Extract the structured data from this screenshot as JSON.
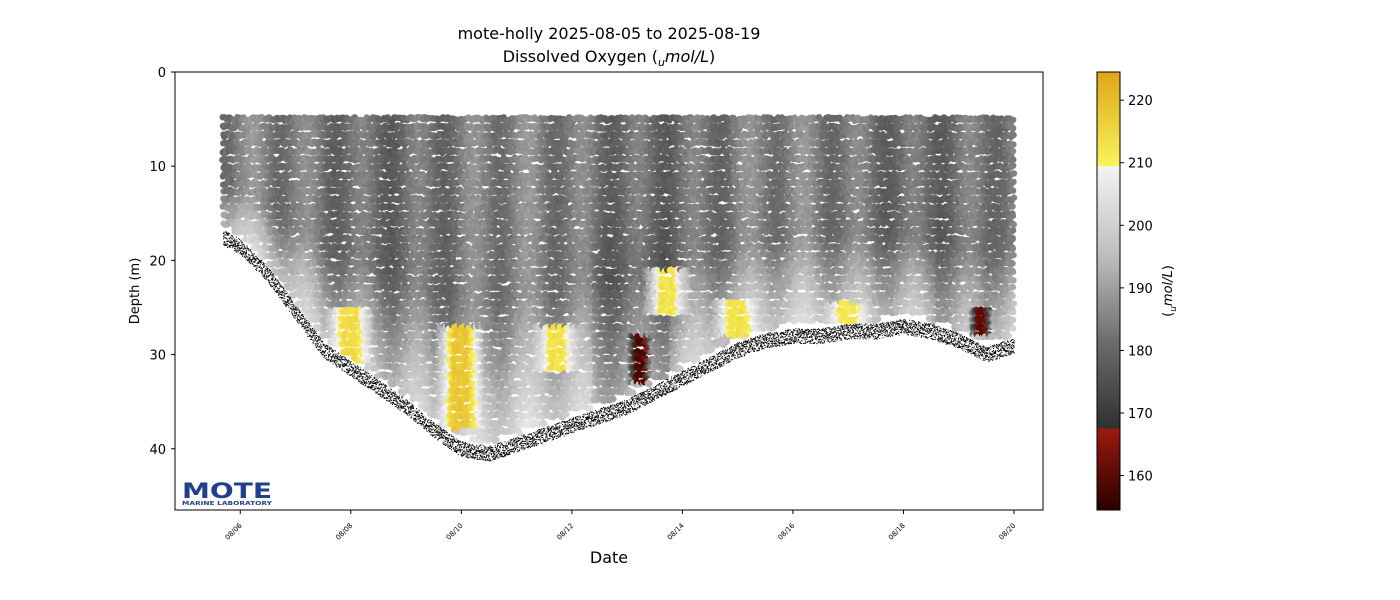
{
  "title_line1": "mote-holly 2025-08-05 to 2025-08-19",
  "title_line2_prefix": "Dissolved Oxygen (",
  "title_line2_sub": "u",
  "title_line2_unit": "mol/L",
  "title_line2_suffix": ")",
  "logo": {
    "main": "MOTE",
    "sub": "MARINE LABORATORY",
    "color": "#1f3f8f"
  },
  "chart_data": {
    "type": "scatter",
    "xlabel": "Date",
    "ylabel": "Depth (m)",
    "x_ticks": [
      "08/06",
      "08/08",
      "08/10",
      "08/12",
      "08/14",
      "08/16",
      "08/18",
      "08/20"
    ],
    "y_ticks": [
      0,
      10,
      20,
      30,
      40
    ],
    "ylim": [
      46.5,
      0
    ],
    "xlim": [
      "2025-08-05",
      "2025-08-20"
    ],
    "y_inverted": true,
    "colorbar": {
      "label_sub": "u",
      "label_unit": "mol/L",
      "ticks": [
        160,
        170,
        180,
        190,
        200,
        210,
        220
      ],
      "range": [
        154.5,
        224.5
      ],
      "colormap": [
        {
          "v": 154.5,
          "color": "#2a0000"
        },
        {
          "v": 167.5,
          "color": "#9a1a10"
        },
        {
          "v": 167.5,
          "color": "#303030"
        },
        {
          "v": 181.0,
          "color": "#6a6a6a"
        },
        {
          "v": 195.0,
          "color": "#bdbdbd"
        },
        {
          "v": 209.5,
          "color": "#f4f4f4"
        },
        {
          "v": 209.5,
          "color": "#f8f45a"
        },
        {
          "v": 224.5,
          "color": "#dfa61a"
        }
      ]
    },
    "surface_depth_m": 5,
    "bottom_profile": {
      "dates": [
        "2025-08-05 16:00",
        "2025-08-06 00:00",
        "2025-08-06 12:00",
        "2025-08-07 00:00",
        "2025-08-07 12:00",
        "2025-08-08 00:00",
        "2025-08-08 12:00",
        "2025-08-09 00:00",
        "2025-08-09 12:00",
        "2025-08-10 00:00",
        "2025-08-10 12:00",
        "2025-08-11 00:00",
        "2025-08-11 12:00",
        "2025-08-12 00:00",
        "2025-08-12 12:00",
        "2025-08-13 00:00",
        "2025-08-13 12:00",
        "2025-08-14 00:00",
        "2025-08-14 12:00",
        "2025-08-15 00:00",
        "2025-08-15 12:00",
        "2025-08-16 00:00",
        "2025-08-16 12:00",
        "2025-08-17 00:00",
        "2025-08-17 12:00",
        "2025-08-18 00:00",
        "2025-08-18 12:00",
        "2025-08-19 00:00",
        "2025-08-19 12:00",
        "2025-08-20 00:00"
      ],
      "depths": [
        17.5,
        18.5,
        21.5,
        25.5,
        29.5,
        31.5,
        33.5,
        35.5,
        38.0,
        40.0,
        40.5,
        39.5,
        38.5,
        37.5,
        36.5,
        35.5,
        34.0,
        32.5,
        31.0,
        29.5,
        28.5,
        28.0,
        28.0,
        27.5,
        27.5,
        27.0,
        27.5,
        28.5,
        30.0,
        29.0
      ]
    },
    "oxygen_features": [
      {
        "label": "low-oxygen pocket",
        "date": "2025-08-13 06:00",
        "depth_range": [
          28,
          33
        ],
        "value": 158
      },
      {
        "label": "low-oxygen pocket",
        "date": "2025-08-19 10:00",
        "depth_range": [
          25,
          28
        ],
        "value": 160
      },
      {
        "label": "high-oxygen bloom",
        "date": "2025-08-10 00:00",
        "depth_range": [
          27,
          38
        ],
        "value": 218
      },
      {
        "label": "high-oxygen patch",
        "date": "2025-08-08 00:00",
        "depth_range": [
          25,
          31
        ],
        "value": 214
      },
      {
        "label": "high-oxygen patch",
        "date": "2025-08-11 18:00",
        "depth_range": [
          27,
          32
        ],
        "value": 213
      },
      {
        "label": "high-oxygen patch",
        "date": "2025-08-13 18:00",
        "depth_range": [
          21,
          26
        ],
        "value": 213
      },
      {
        "label": "high-oxygen patch",
        "date": "2025-08-15 00:00",
        "depth_range": [
          24,
          28
        ],
        "value": 213
      },
      {
        "label": "high-oxygen patch",
        "date": "2025-08-17 00:00",
        "depth_range": [
          24.5,
          27
        ],
        "value": 212
      }
    ],
    "colors": {
      "axis": "#000000",
      "background": "#ffffff",
      "bottom_trace": "#000000"
    }
  }
}
